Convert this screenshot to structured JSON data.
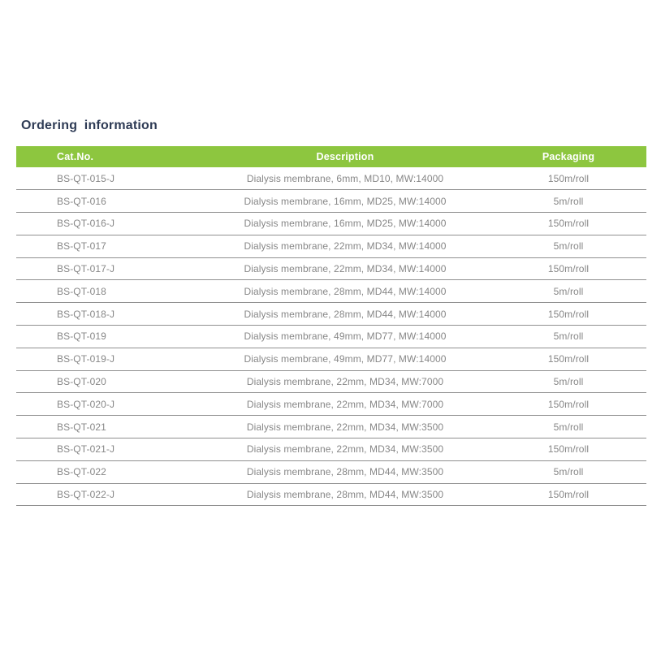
{
  "colors": {
    "header_bg": "#8dc63f",
    "header_text": "#ffffff",
    "title_text": "#2e3b55",
    "body_text": "#878787",
    "divider": "#909090",
    "page_bg": "#ffffff"
  },
  "section_title": "Ordering information",
  "table": {
    "columns": [
      {
        "key": "cat_no",
        "label": "Cat.No."
      },
      {
        "key": "description",
        "label": "Description"
      },
      {
        "key": "packaging",
        "label": "Packaging"
      }
    ],
    "rows": [
      {
        "cat_no": "BS-QT-015-J",
        "description": "Dialysis membrane, 6mm, MD10, MW:14000",
        "packaging": "150m/roll"
      },
      {
        "cat_no": "BS-QT-016",
        "description": "Dialysis membrane, 16mm, MD25, MW:14000",
        "packaging": "5m/roll"
      },
      {
        "cat_no": "BS-QT-016-J",
        "description": "Dialysis membrane, 16mm, MD25, MW:14000",
        "packaging": "150m/roll"
      },
      {
        "cat_no": "BS-QT-017",
        "description": "Dialysis membrane, 22mm, MD34, MW:14000",
        "packaging": "5m/roll"
      },
      {
        "cat_no": "BS-QT-017-J",
        "description": "Dialysis membrane, 22mm, MD34, MW:14000",
        "packaging": "150m/roll"
      },
      {
        "cat_no": "BS-QT-018",
        "description": "Dialysis membrane, 28mm, MD44, MW:14000",
        "packaging": "5m/roll"
      },
      {
        "cat_no": "BS-QT-018-J",
        "description": "Dialysis membrane, 28mm, MD44, MW:14000",
        "packaging": "150m/roll"
      },
      {
        "cat_no": "BS-QT-019",
        "description": "Dialysis membrane, 49mm, MD77, MW:14000",
        "packaging": "5m/roll"
      },
      {
        "cat_no": "BS-QT-019-J",
        "description": "Dialysis membrane, 49mm, MD77, MW:14000",
        "packaging": "150m/roll"
      },
      {
        "cat_no": "BS-QT-020",
        "description": "Dialysis membrane, 22mm, MD34, MW:7000",
        "packaging": "5m/roll"
      },
      {
        "cat_no": "BS-QT-020-J",
        "description": "Dialysis membrane, 22mm, MD34, MW:7000",
        "packaging": "150m/roll"
      },
      {
        "cat_no": "BS-QT-021",
        "description": "Dialysis membrane, 22mm, MD34, MW:3500",
        "packaging": "5m/roll"
      },
      {
        "cat_no": "BS-QT-021-J",
        "description": "Dialysis membrane, 22mm, MD34, MW:3500",
        "packaging": "150m/roll"
      },
      {
        "cat_no": "BS-QT-022",
        "description": "Dialysis membrane, 28mm, MD44, MW:3500",
        "packaging": "5m/roll"
      },
      {
        "cat_no": "BS-QT-022-J",
        "description": "Dialysis membrane, 28mm, MD44, MW:3500",
        "packaging": "150m/roll"
      }
    ]
  }
}
